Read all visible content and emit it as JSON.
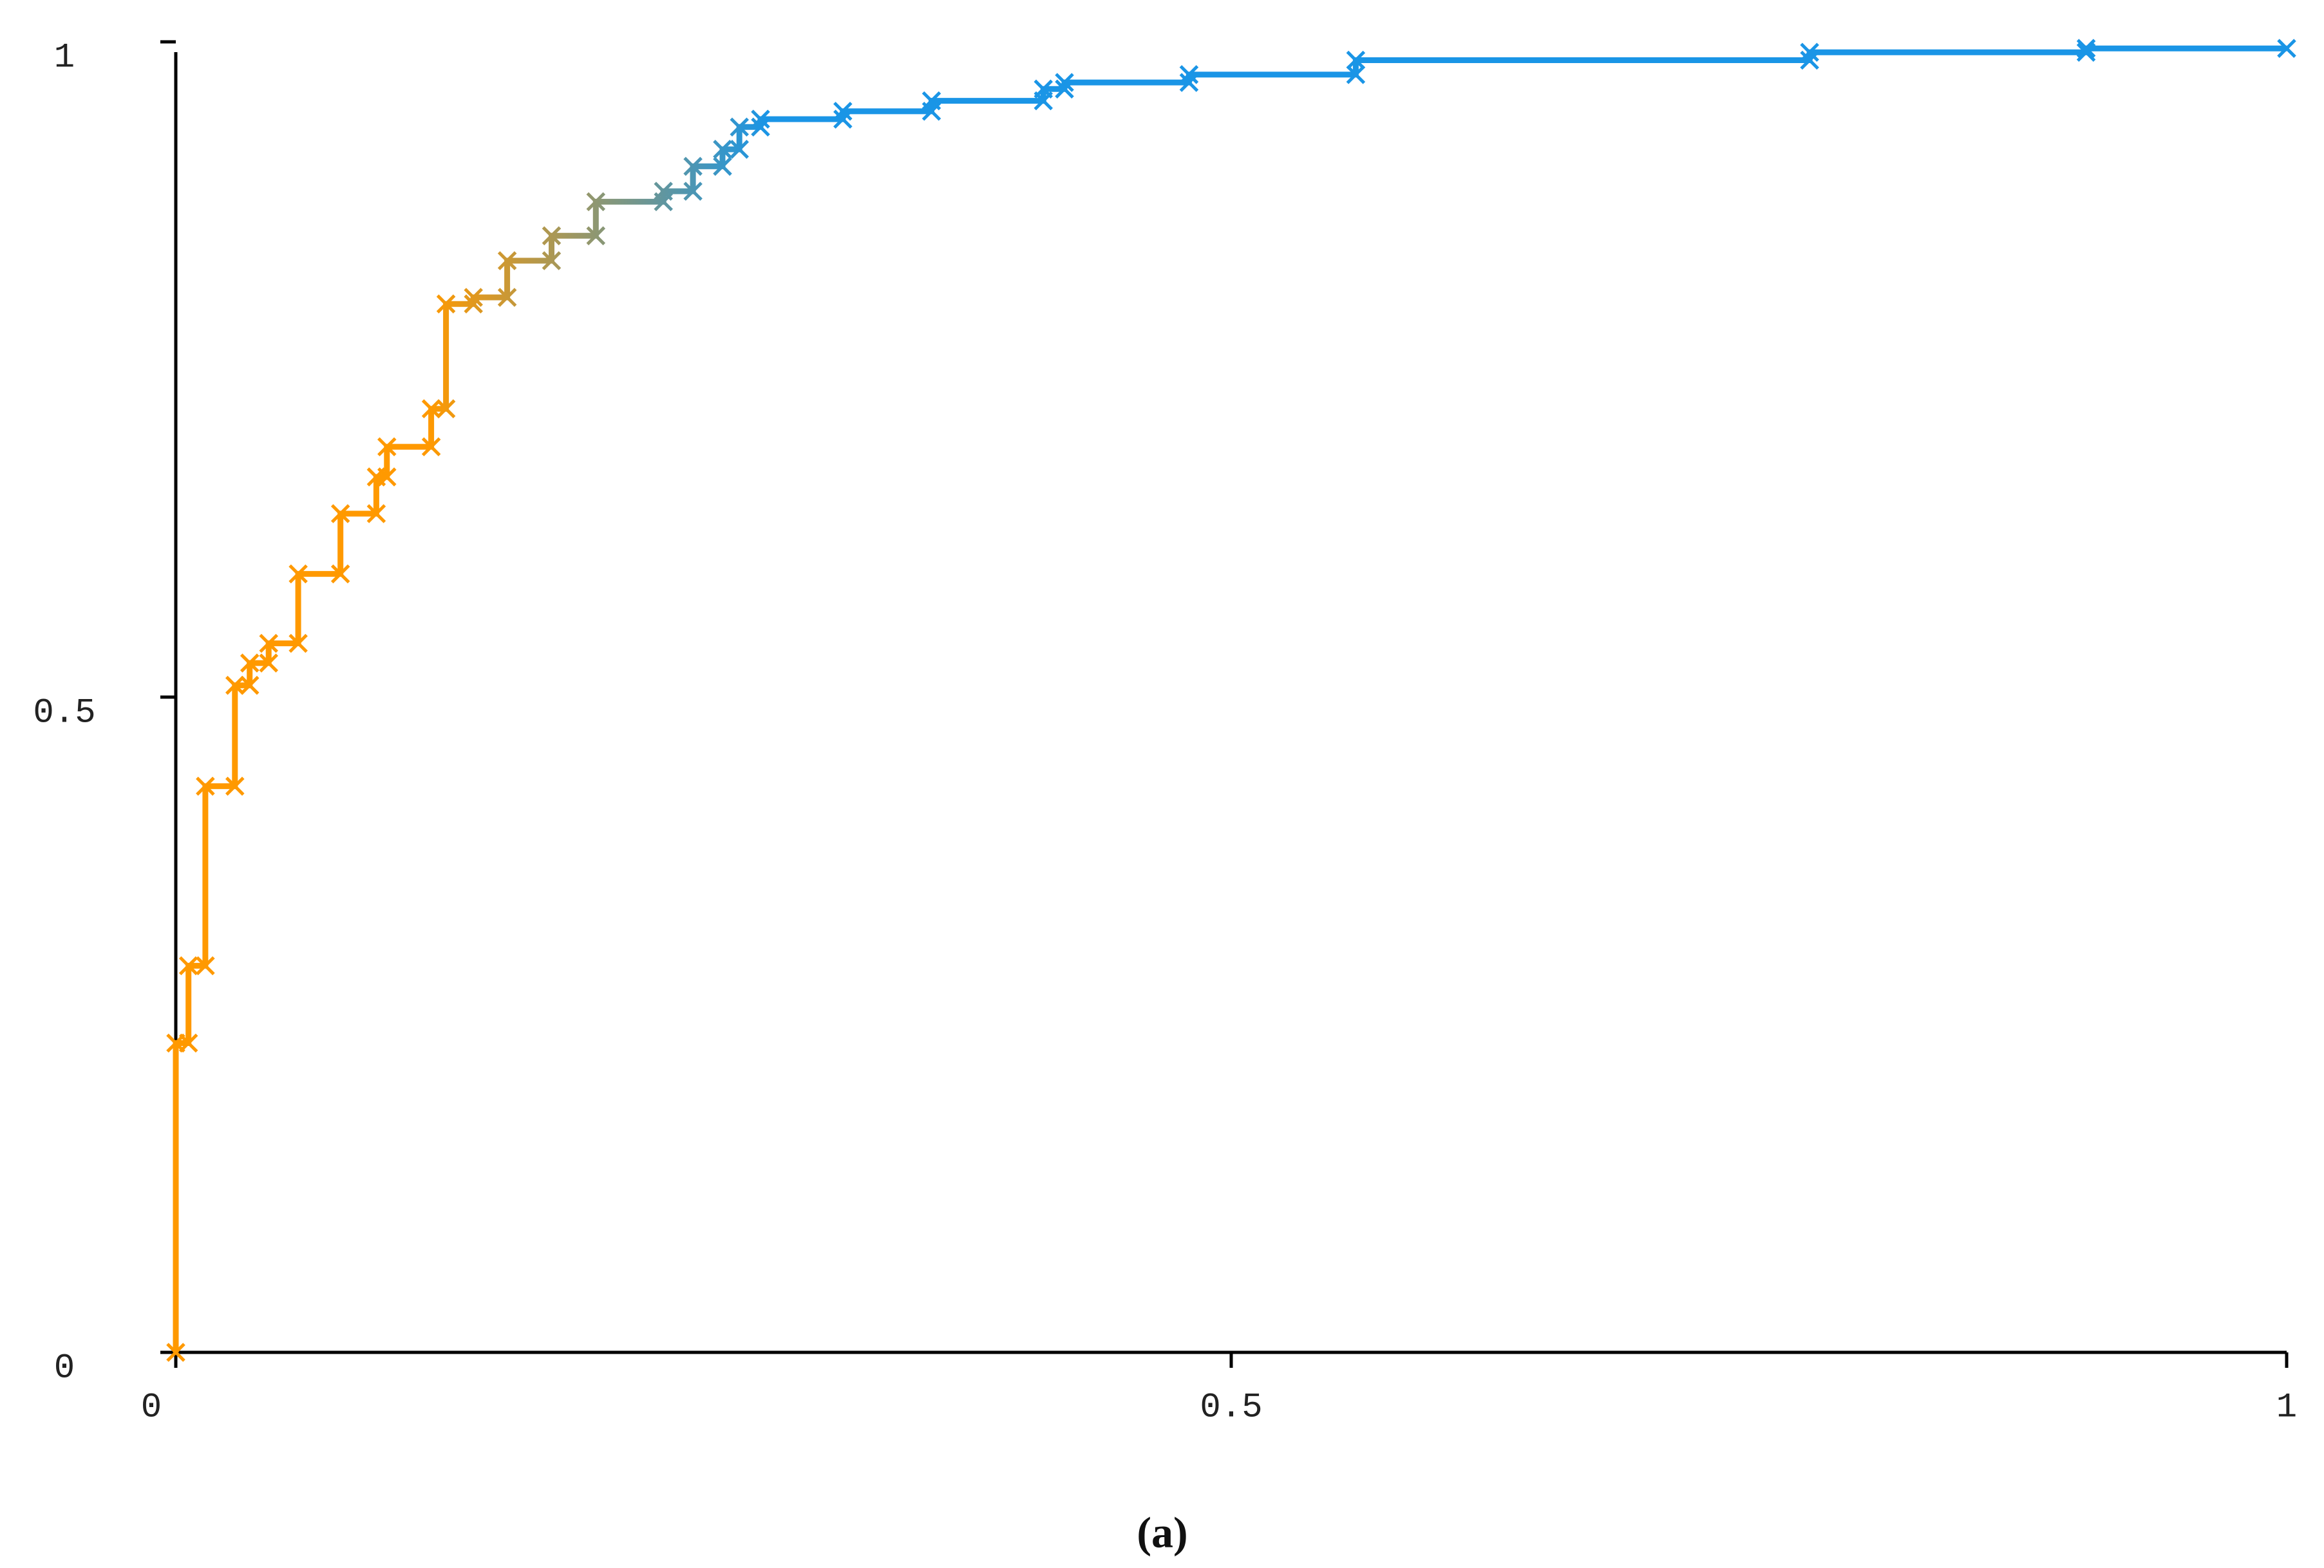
{
  "chart_data": {
    "type": "line",
    "caption": "(a)",
    "xlim": [
      0,
      1
    ],
    "ylim": [
      0,
      1
    ],
    "xticks": [
      0,
      {
        "value": 0.5,
        "label": "0.5"
      },
      1
    ],
    "yticks": [
      0,
      {
        "value": 0.5,
        "label": "0.5"
      },
      1
    ],
    "colors": [
      "#ff9900",
      "#1a95e6"
    ],
    "series": [
      {
        "x": [
          0,
          0,
          0.006,
          0.006,
          0.014,
          0.014,
          0.028,
          0.028,
          0.035,
          0.035,
          0.044,
          0.044,
          0.058,
          0.058,
          0.078,
          0.078,
          0.095,
          0.095,
          0.1,
          0.1,
          0.121,
          0.121,
          0.128,
          0.128,
          0.141,
          0.141,
          0.157,
          0.157,
          0.178,
          0.178,
          0.199,
          0.199,
          0.231,
          0.231,
          0.245,
          0.245,
          0.259,
          0.259,
          0.267,
          0.267,
          0.277,
          0.277,
          0.316,
          0.316,
          0.358,
          0.358,
          0.411,
          0.411,
          0.421,
          0.421,
          0.48,
          0.48,
          0.559,
          0.559,
          0.774,
          0.774,
          0.905,
          0.905,
          1
        ],
        "values": [
          0,
          0.236,
          0.236,
          0.295,
          0.295,
          0.432,
          0.432,
          0.509,
          0.509,
          0.526,
          0.526,
          0.541,
          0.541,
          0.594,
          0.594,
          0.64,
          0.64,
          0.668,
          0.668,
          0.691,
          0.691,
          0.72,
          0.72,
          0.8,
          0.8,
          0.805,
          0.805,
          0.833,
          0.833,
          0.852,
          0.852,
          0.878,
          0.878,
          0.886,
          0.886,
          0.905,
          0.905,
          0.918,
          0.918,
          0.935,
          0.935,
          0.941,
          0.941,
          0.947,
          0.947,
          0.955,
          0.955,
          0.964,
          0.964,
          0.969,
          0.969,
          0.975,
          0.975,
          0.986,
          0.986,
          0.992,
          0.992,
          0.995,
          0.995
        ]
      }
    ]
  }
}
